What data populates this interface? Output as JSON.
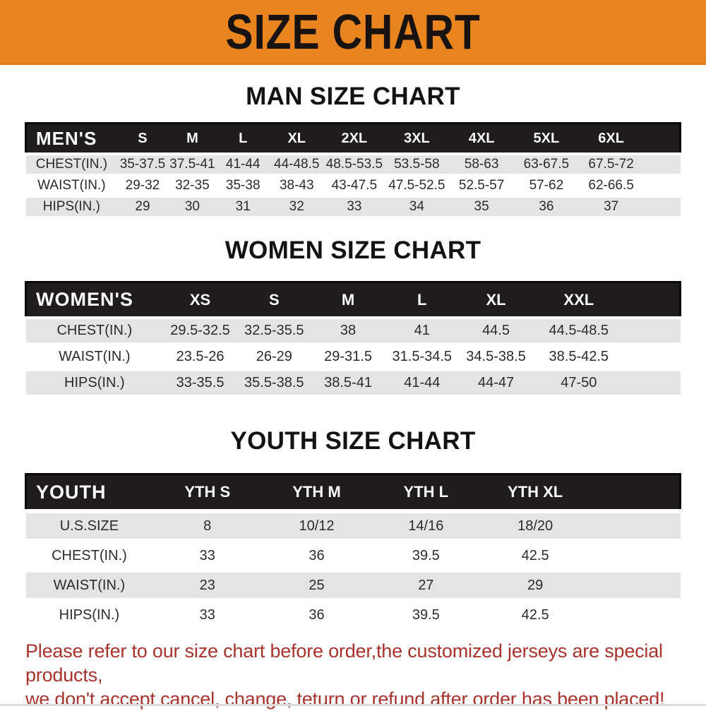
{
  "banner": {
    "title": "SIZE CHART"
  },
  "colors": {
    "orange": "#e8851e",
    "bar": "#1e1c1c",
    "rowgray": "#e4e4e3",
    "red": "#a8332c"
  },
  "sections": [
    {
      "heading": "MAN SIZE CHART",
      "table": {
        "label": "MEN'S",
        "columns": [
          "S",
          "M",
          "L",
          "XL",
          "2XL",
          "3XL",
          "4XL",
          "5XL",
          "6XL"
        ],
        "col_widths_pct": [
          14,
          7.7,
          7.5,
          8,
          8.4,
          9.2,
          9.9,
          9.9,
          9.9,
          9.9,
          5.6
        ],
        "rows": [
          {
            "label": "CHEST(IN.)",
            "values": [
              "35-37.5",
              "37.5-41",
              "41-44",
              "44-48.5",
              "48.5-53.5",
              "53.5-58",
              "58-63",
              "63-67.5",
              "67.5-72"
            ]
          },
          {
            "label": "WAIST(IN.)",
            "values": [
              "29-32",
              "32-35",
              "35-38",
              "38-43",
              "43-47.5",
              "47.5-52.5",
              "52.5-57",
              "57-62",
              "62-66.5"
            ]
          },
          {
            "label": "HIPS(IN.)",
            "values": [
              "29",
              "30",
              "31",
              "32",
              "33",
              "34",
              "35",
              "36",
              "37"
            ]
          }
        ]
      }
    },
    {
      "heading": "WOMEN SIZE CHART",
      "table": {
        "label": "WOMEN'S",
        "columns": [
          "XS",
          "S",
          "M",
          "L",
          "XL",
          "XXL"
        ],
        "col_widths_pct": [
          21,
          11.3,
          11.3,
          11.3,
          11.3,
          11.3,
          14,
          8.5
        ],
        "rows": [
          {
            "label": "CHEST(IN.)",
            "values": [
              "29.5-32.5",
              "32.5-35.5",
              "38",
              "41",
              "44.5",
              "44.5-48.5"
            ]
          },
          {
            "label": "WAIST(IN.)",
            "values": [
              "23.5-26",
              "26-29",
              "29-31.5",
              "31.5-34.5",
              "34.5-38.5",
              "38.5-42.5"
            ]
          },
          {
            "label": "HIPS(IN.)",
            "values": [
              "33-35.5",
              "35.5-38.5",
              "38.5-41",
              "41-44",
              "44-47",
              "47-50"
            ]
          }
        ]
      }
    },
    {
      "heading": "YOUTH SIZE CHART",
      "table": {
        "label": "YOUTH",
        "columns": [
          "YTH S",
          "YTH M",
          "YTH L",
          "YTH XL"
        ],
        "col_widths_pct": [
          19.4,
          16.7,
          16.7,
          16.7,
          16.7,
          13.8
        ],
        "rows": [
          {
            "label": "U.S.SIZE",
            "values": [
              "8",
              "10/12",
              "14/16",
              "18/20"
            ]
          },
          {
            "label": "CHEST(IN.)",
            "values": [
              "33",
              "36",
              "39.5",
              "42.5"
            ]
          },
          {
            "label": "WAIST(IN.)",
            "values": [
              "23",
              "25",
              "27",
              "29"
            ]
          },
          {
            "label": "HIPS(IN.)",
            "values": [
              "33",
              "36",
              "39.5",
              "42.5"
            ]
          }
        ]
      }
    }
  ],
  "disclaimer": {
    "lines": [
      "Please refer to our size chart before order,the customized jerseys are special products,",
      "we don't accept cancel, change, teturn or refund after order has been placed!"
    ]
  },
  "chart_data": [
    {
      "type": "table",
      "title": "MAN SIZE CHART",
      "columns": [
        "MEN'S",
        "S",
        "M",
        "L",
        "XL",
        "2XL",
        "3XL",
        "4XL",
        "5XL",
        "6XL"
      ],
      "rows": [
        [
          "CHEST(IN.)",
          "35-37.5",
          "37.5-41",
          "41-44",
          "44-48.5",
          "48.5-53.5",
          "53.5-58",
          "58-63",
          "63-67.5",
          "67.5-72"
        ],
        [
          "WAIST(IN.)",
          "29-32",
          "32-35",
          "35-38",
          "38-43",
          "43-47.5",
          "47.5-52.5",
          "52.5-57",
          "57-62",
          "62-66.5"
        ],
        [
          "HIPS(IN.)",
          "29",
          "30",
          "31",
          "32",
          "33",
          "34",
          "35",
          "36",
          "37"
        ]
      ]
    },
    {
      "type": "table",
      "title": "WOMEN SIZE CHART",
      "columns": [
        "WOMEN'S",
        "XS",
        "S",
        "M",
        "L",
        "XL",
        "XXL"
      ],
      "rows": [
        [
          "CHEST(IN.)",
          "29.5-32.5",
          "32.5-35.5",
          "38",
          "41",
          "44.5",
          "44.5-48.5"
        ],
        [
          "WAIST(IN.)",
          "23.5-26",
          "26-29",
          "29-31.5",
          "31.5-34.5",
          "34.5-38.5",
          "38.5-42.5"
        ],
        [
          "HIPS(IN.)",
          "33-35.5",
          "35.5-38.5",
          "38.5-41",
          "41-44",
          "44-47",
          "47-50"
        ]
      ]
    },
    {
      "type": "table",
      "title": "YOUTH SIZE CHART",
      "columns": [
        "YOUTH",
        "YTH S",
        "YTH M",
        "YTH L",
        "YTH XL"
      ],
      "rows": [
        [
          "U.S.SIZE",
          "8",
          "10/12",
          "14/16",
          "18/20"
        ],
        [
          "CHEST(IN.)",
          "33",
          "36",
          "39.5",
          "42.5"
        ],
        [
          "WAIST(IN.)",
          "23",
          "25",
          "27",
          "29"
        ],
        [
          "HIPS(IN.)",
          "33",
          "36",
          "39.5",
          "42.5"
        ]
      ]
    }
  ]
}
